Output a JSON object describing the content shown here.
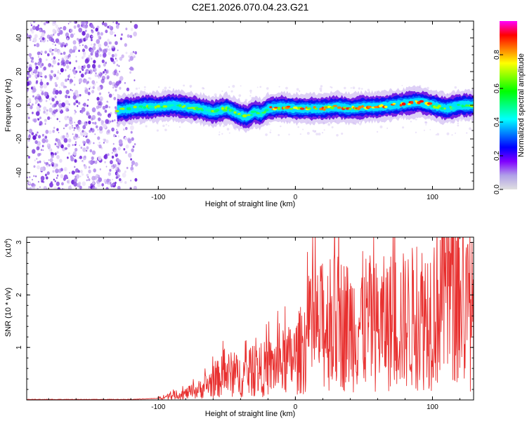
{
  "figure_title": "C2E1.2026.070.04.23.G21",
  "colors": {
    "snr_line": "#e8302f",
    "axis": "#000000",
    "background": "#ffffff"
  },
  "chart_data": [
    {
      "type": "heatmap",
      "name": "spectrogram",
      "xlabel": "Height of straight line (km)",
      "ylabel": "Frequency (Hz)",
      "xlim": [
        -196,
        130
      ],
      "ylim": [
        -50,
        50
      ],
      "x_ticks": [
        -100,
        0,
        100
      ],
      "y_ticks": [
        -40,
        -20,
        0,
        20,
        40
      ],
      "noise_region_x": [
        -196,
        -116
      ],
      "signal_start_x": -130,
      "signal_ridge": {
        "x": [
          -130,
          -120,
          -110,
          -100,
          -90,
          -80,
          -70,
          -60,
          -50,
          -45,
          -40,
          -35,
          -30,
          -25,
          -20,
          -10,
          0,
          10,
          20,
          30,
          40,
          50,
          60,
          70,
          80,
          90,
          100,
          110,
          120,
          130
        ],
        "frequency": [
          -3,
          -2,
          -1,
          -1,
          0,
          -1,
          -2,
          -4,
          -2,
          -4,
          -6,
          -7,
          -4,
          -5,
          -2,
          -1,
          -2,
          -2,
          -2,
          -1,
          -2,
          -1,
          -1,
          0,
          1,
          2,
          0,
          -2,
          0,
          0
        ]
      },
      "colorbar": {
        "label": "Normalized spectral amplitude",
        "range": [
          0,
          1
        ],
        "ticks": [
          "0.0",
          "0.2",
          "0.4",
          "0.6",
          "0.8"
        ],
        "colormap": [
          "#e0e0e0",
          "#b0a0e8",
          "#8000ff",
          "#0000ff",
          "#0080ff",
          "#00ffff",
          "#00ff80",
          "#00ff00",
          "#80ff00",
          "#ffff00",
          "#ff8000",
          "#ff0000",
          "#ff00ff"
        ]
      }
    },
    {
      "type": "line",
      "name": "snr",
      "xlabel": "Height of straight line (km)",
      "ylabel": "SNR (10 * v/v)",
      "scale_label": "(x10",
      "scale_exp": "4",
      "xlim": [
        -196,
        130
      ],
      "ylim": [
        0,
        3.1
      ],
      "x_ticks": [
        -100,
        0,
        100
      ],
      "y_ticks": [
        1,
        2,
        3
      ],
      "series": [
        {
          "name": "SNR",
          "x": [
            -196,
            -160,
            -120,
            -100,
            -90,
            -80,
            -70,
            -60,
            -50,
            -40,
            -30,
            -20,
            -10,
            0,
            5,
            10,
            15,
            20,
            30,
            40,
            50,
            60,
            70,
            80,
            90,
            100,
            105,
            110,
            115,
            120,
            125,
            130
          ],
          "y": [
            0.01,
            0.01,
            0.01,
            0.03,
            0.08,
            0.12,
            0.2,
            0.35,
            0.5,
            0.45,
            0.55,
            0.6,
            0.7,
            0.8,
            1.0,
            1.2,
            1.3,
            1.4,
            1.5,
            1.4,
            1.5,
            1.4,
            1.5,
            1.5,
            1.6,
            1.7,
            2.0,
            2.2,
            2.1,
            1.8,
            1.7,
            1.6
          ]
        }
      ]
    }
  ]
}
